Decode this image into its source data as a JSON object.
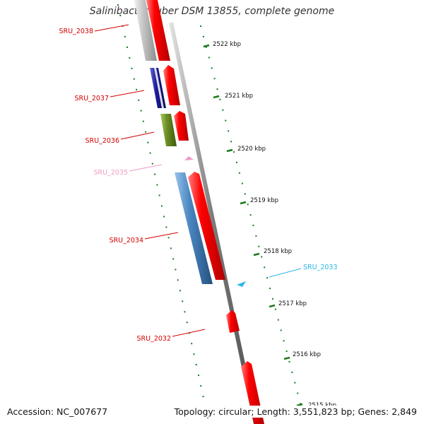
{
  "title": "Salinibacter ruber DSM 13855, complete genome",
  "ticks": [
    {
      "label": "2522 kbp"
    },
    {
      "label": "2521 kbp"
    },
    {
      "label": "2520 kbp"
    },
    {
      "label": "2519 kbp"
    },
    {
      "label": "2518 kbp"
    },
    {
      "label": "2517 kbp"
    },
    {
      "label": "2516 kbp"
    },
    {
      "label": "2515 kbp"
    }
  ],
  "genes": [
    {
      "name": "SRU_2038",
      "label_color": "#d40000"
    },
    {
      "name": "SRU_2037",
      "label_color": "#d40000"
    },
    {
      "name": "SRU_2036",
      "label_color": "#d40000"
    },
    {
      "name": "SRU_2035",
      "label_color": "#f09ac4"
    },
    {
      "name": "SRU_2034",
      "label_color": "#d40000"
    },
    {
      "name": "SRU_2033",
      "label_color": "#29b6e8"
    },
    {
      "name": "SRU_2032",
      "label_color": "#d40000"
    }
  ],
  "colors": {
    "cds": "#ff0000",
    "backbone": "#8a8a8a",
    "tick": "#1a7a1a",
    "gene_2038": "#bdbdbd",
    "gene_2037": "#1a1a9a",
    "gene_2036": "#6b8e23",
    "gene_2035": "#f09ac4",
    "gene_2034": "#4a86c0",
    "gene_2033": "#29b6e8"
  },
  "footer": {
    "accession": "Accession: NC_007677",
    "summary": "Topology: circular; Length: 3,551,823 bp; Genes: 2,849"
  }
}
